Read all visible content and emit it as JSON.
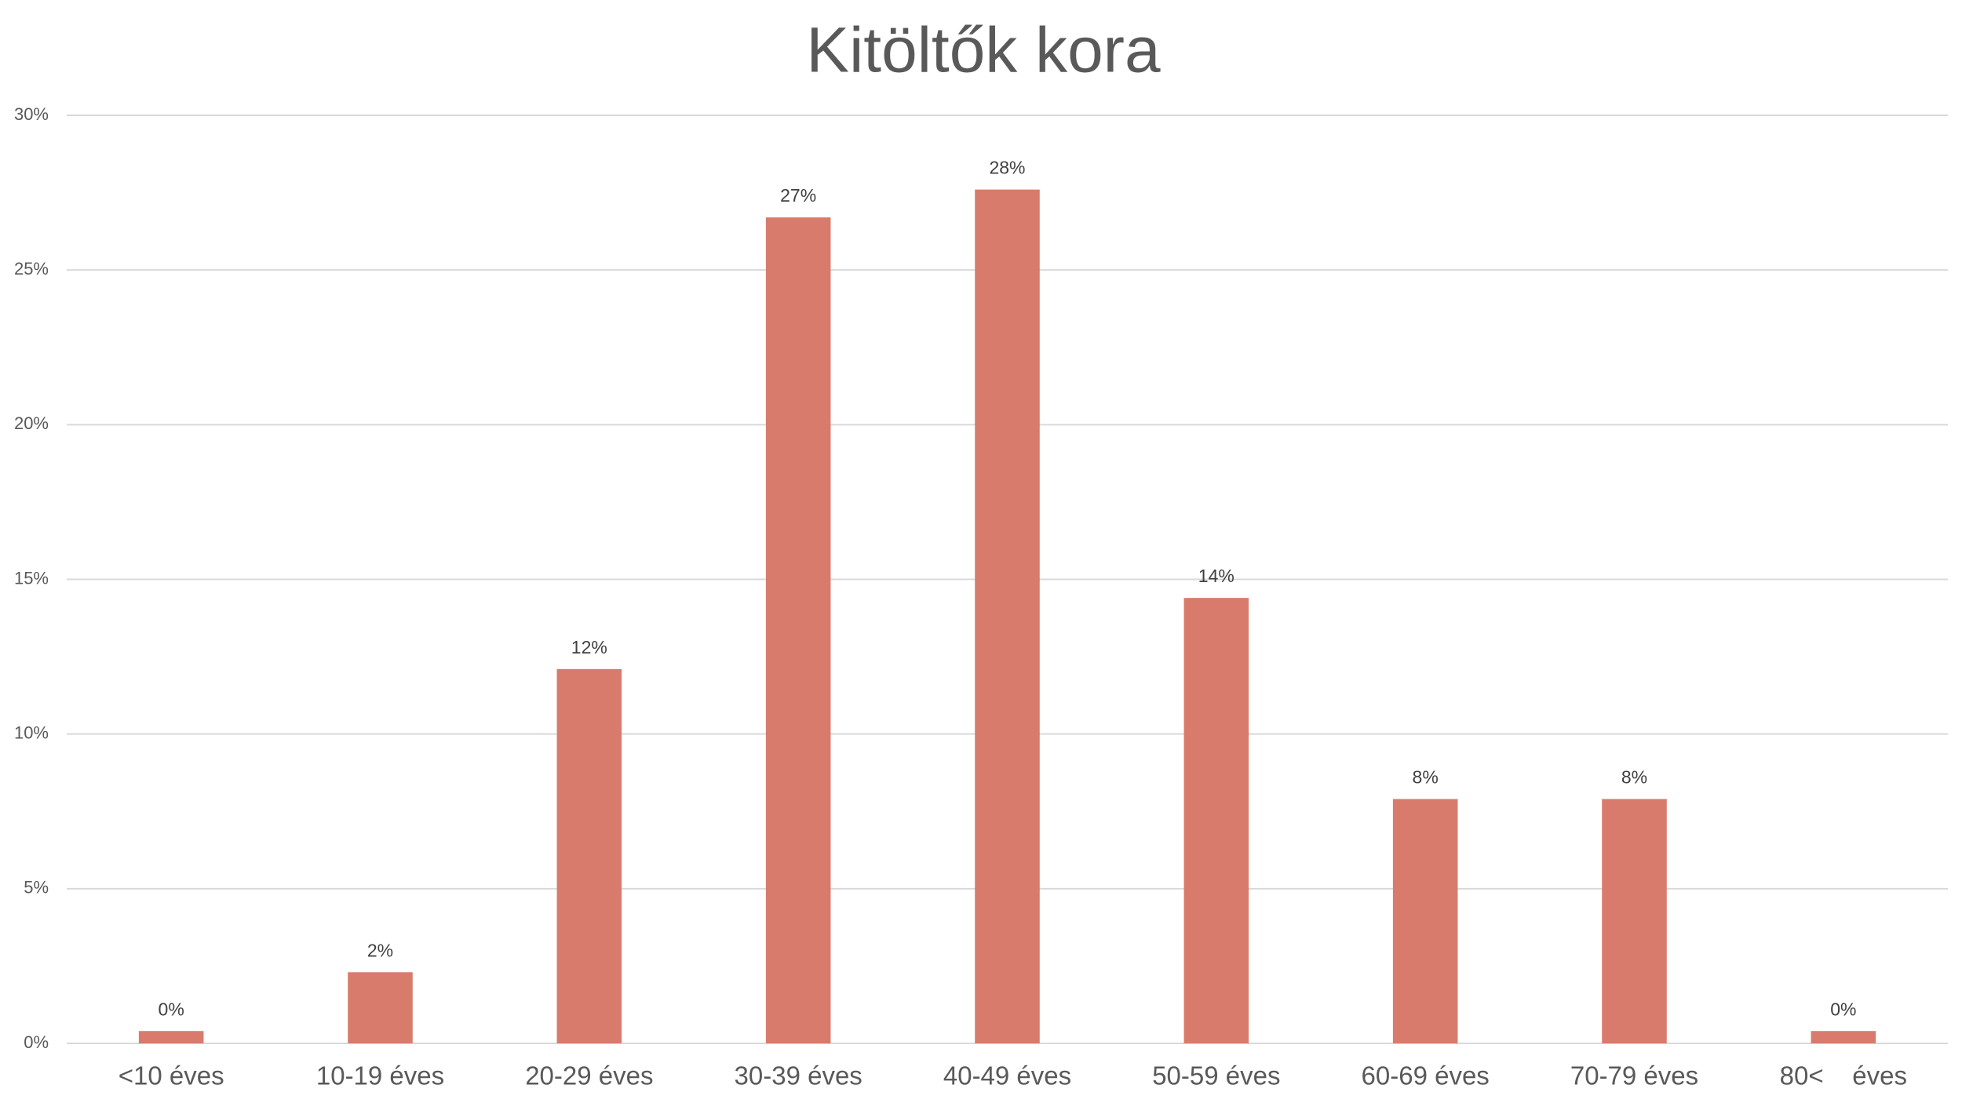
{
  "chart_data": {
    "type": "bar",
    "title": "Kitöltők kora",
    "categories": [
      "<10 éves",
      "10-19 éves",
      "20-29 éves",
      "30-39 éves",
      "40-49 éves",
      "50-59 éves",
      "60-69 éves",
      "70-79 éves",
      "80<    éves"
    ],
    "values": [
      0.4,
      2.3,
      12.1,
      26.7,
      27.6,
      14.4,
      7.9,
      7.9,
      0.4
    ],
    "value_labels": [
      "0%",
      "2%",
      "12%",
      "27%",
      "28%",
      "14%",
      "8%",
      "8%",
      "0%"
    ],
    "color": "#d97b6c",
    "ylim": [
      0,
      30
    ],
    "yticks": [
      {
        "value": 0,
        "label": "0%"
      },
      {
        "value": 5,
        "label": "5%"
      },
      {
        "value": 10,
        "label": "10%"
      },
      {
        "value": 15,
        "label": "15%"
      },
      {
        "value": 20,
        "label": "20%"
      },
      {
        "value": 25,
        "label": "25%"
      },
      {
        "value": 30,
        "label": "30%"
      }
    ],
    "grid": true
  }
}
